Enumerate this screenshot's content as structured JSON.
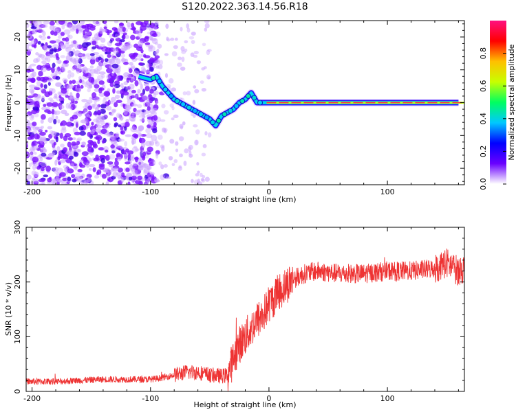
{
  "figure": {
    "title": "S120.2022.363.14.56.R18"
  },
  "chart_data": [
    {
      "type": "heatmap",
      "xlabel": "Height of straight line (km)",
      "ylabel": "Frequency (Hz)",
      "xlim": [
        -205,
        165
      ],
      "ylim": [
        -25,
        25
      ],
      "xticks": [
        -200,
        -100,
        0,
        100
      ],
      "yticks": [
        -20,
        -10,
        0,
        10,
        20
      ],
      "grid": false,
      "colorbar": {
        "label": "Normalized spectral amplitude",
        "range": [
          0,
          1
        ],
        "ticks": [
          0.0,
          0.2,
          0.4,
          0.6,
          0.8
        ],
        "colormap": [
          "#ffffff",
          "#6a00ff",
          "#0000ff",
          "#00c8ff",
          "#00ff60",
          "#c8ff00",
          "#ffc000",
          "#ff0000",
          "#ff1080"
        ]
      },
      "ridge": {
        "x": [
          -110,
          -100,
          -95,
          -90,
          -85,
          -80,
          -75,
          -70,
          -65,
          -60,
          -55,
          -50,
          -45,
          -40,
          -35,
          -30,
          -25,
          -20,
          -15,
          -10,
          -5,
          0,
          20,
          40,
          60,
          80,
          100,
          120,
          140,
          160
        ],
        "y": [
          8,
          7,
          8,
          5,
          3,
          1,
          0,
          -1,
          -2,
          -3,
          -4,
          -5,
          -7,
          -4,
          -3,
          -2,
          0,
          1,
          3,
          0,
          0,
          0,
          0,
          0,
          0,
          0,
          0,
          0,
          0,
          0
        ]
      }
    },
    {
      "type": "line",
      "xlabel": "Height of straight line (km)",
      "ylabel": "SNR (10 * v/v)",
      "xlim": [
        -205,
        165
      ],
      "ylim": [
        0,
        300
      ],
      "xticks": [
        -200,
        -100,
        0,
        100
      ],
      "yticks": [
        0,
        100,
        200,
        300
      ],
      "grid": false,
      "series": [
        {
          "color": "#ee3333",
          "x": [
            -205,
            -180,
            -160,
            -140,
            -120,
            -100,
            -90,
            -80,
            -70,
            -60,
            -50,
            -40,
            -35,
            -30,
            -25,
            -20,
            -15,
            -10,
            -5,
            0,
            10,
            20,
            30,
            40,
            60,
            80,
            100,
            120,
            140,
            150,
            160,
            165
          ],
          "y": [
            18,
            18,
            20,
            22,
            22,
            22,
            25,
            30,
            35,
            35,
            30,
            28,
            30,
            60,
            85,
            100,
            115,
            130,
            140,
            160,
            185,
            205,
            215,
            220,
            215,
            215,
            220,
            220,
            225,
            235,
            220,
            225
          ]
        }
      ]
    }
  ]
}
